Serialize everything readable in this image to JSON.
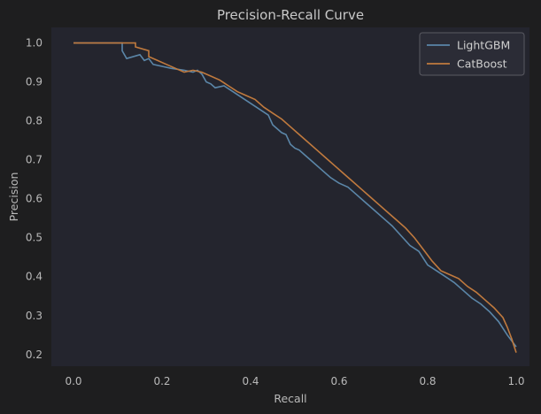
{
  "chart_data": {
    "type": "line",
    "title": "Precision-Recall Curve",
    "xlabel": "Recall",
    "ylabel": "Precision",
    "xlim": [
      -0.05,
      1.03
    ],
    "ylim": [
      0.17,
      1.04
    ],
    "xticks": [
      0.0,
      0.2,
      0.4,
      0.6,
      0.8,
      1.0
    ],
    "xtick_labels": [
      "0.0",
      "0.2",
      "0.4",
      "0.6",
      "0.8",
      "1.0"
    ],
    "yticks": [
      0.2,
      0.3,
      0.4,
      0.5,
      0.6,
      0.7,
      0.8,
      0.9,
      1.0
    ],
    "ytick_labels": [
      "0.2",
      "0.3",
      "0.4",
      "0.5",
      "0.6",
      "0.7",
      "0.8",
      "0.9",
      "1.0"
    ],
    "grid": false,
    "legend_position": "top-right",
    "colors": {
      "figure_bg": "#1e1e1f",
      "axes_bg": "#24252e",
      "text": "#b9b9b9",
      "legend_bg": "#2b2c36",
      "legend_border": "#5a5a62"
    },
    "series": [
      {
        "name": "LightGBM",
        "color": "#5b86a8",
        "x": [
          0.0,
          0.08,
          0.11,
          0.11,
          0.12,
          0.15,
          0.16,
          0.17,
          0.18,
          0.2,
          0.22,
          0.25,
          0.27,
          0.28,
          0.29,
          0.3,
          0.31,
          0.32,
          0.34,
          0.36,
          0.38,
          0.4,
          0.42,
          0.44,
          0.45,
          0.46,
          0.47,
          0.48,
          0.49,
          0.5,
          0.51,
          0.52,
          0.54,
          0.56,
          0.58,
          0.6,
          0.62,
          0.64,
          0.66,
          0.68,
          0.7,
          0.72,
          0.74,
          0.76,
          0.78,
          0.8,
          0.82,
          0.84,
          0.86,
          0.88,
          0.9,
          0.92,
          0.94,
          0.96,
          0.98,
          1.0
        ],
        "y": [
          1.0,
          1.0,
          1.0,
          0.98,
          0.96,
          0.97,
          0.955,
          0.96,
          0.945,
          0.94,
          0.935,
          0.93,
          0.925,
          0.93,
          0.92,
          0.9,
          0.895,
          0.885,
          0.89,
          0.875,
          0.86,
          0.845,
          0.83,
          0.815,
          0.79,
          0.78,
          0.77,
          0.765,
          0.74,
          0.73,
          0.725,
          0.715,
          0.695,
          0.675,
          0.655,
          0.64,
          0.63,
          0.61,
          0.59,
          0.57,
          0.55,
          0.53,
          0.505,
          0.48,
          0.465,
          0.43,
          0.415,
          0.4,
          0.385,
          0.365,
          0.345,
          0.33,
          0.31,
          0.285,
          0.25,
          0.22
        ]
      },
      {
        "name": "CatBoost",
        "color": "#c07a3e",
        "x": [
          0.0,
          0.08,
          0.14,
          0.14,
          0.17,
          0.17,
          0.19,
          0.21,
          0.23,
          0.25,
          0.27,
          0.29,
          0.31,
          0.33,
          0.35,
          0.37,
          0.39,
          0.41,
          0.43,
          0.45,
          0.47,
          0.49,
          0.51,
          0.53,
          0.55,
          0.57,
          0.59,
          0.61,
          0.63,
          0.65,
          0.67,
          0.69,
          0.71,
          0.73,
          0.75,
          0.77,
          0.79,
          0.81,
          0.83,
          0.85,
          0.87,
          0.89,
          0.91,
          0.93,
          0.95,
          0.97,
          0.98,
          0.99,
          1.0
        ],
        "y": [
          1.0,
          1.0,
          1.0,
          0.99,
          0.98,
          0.965,
          0.955,
          0.945,
          0.935,
          0.925,
          0.93,
          0.925,
          0.915,
          0.905,
          0.89,
          0.875,
          0.865,
          0.855,
          0.835,
          0.82,
          0.805,
          0.785,
          0.765,
          0.745,
          0.725,
          0.705,
          0.685,
          0.665,
          0.645,
          0.625,
          0.605,
          0.585,
          0.565,
          0.545,
          0.525,
          0.5,
          0.47,
          0.44,
          0.415,
          0.405,
          0.395,
          0.375,
          0.36,
          0.34,
          0.32,
          0.295,
          0.27,
          0.24,
          0.205
        ]
      }
    ]
  }
}
